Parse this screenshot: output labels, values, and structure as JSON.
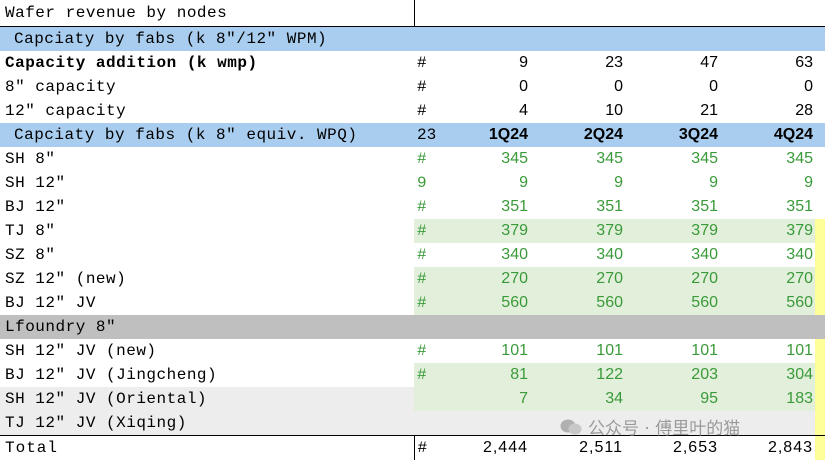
{
  "title": "Wafer revenue by nodes",
  "sections": [
    {
      "header": "Capciaty by fabs (k 8″/12″ WPM)",
      "rows": [
        {
          "label": "Capacity addition (k wmp)",
          "marker": "#",
          "values": [
            9,
            23,
            47,
            63
          ]
        },
        {
          "label": "8″ capacity",
          "marker": "#",
          "values": [
            0,
            0,
            0,
            0
          ]
        },
        {
          "label": "12″ capacity",
          "marker": "#",
          "values": [
            4,
            10,
            21,
            28
          ]
        }
      ]
    },
    {
      "header": "Capciaty by fabs (k 8″ equiv. WPQ)",
      "marker": "23",
      "columns": [
        "1Q24",
        "2Q24",
        "3Q24",
        "4Q24"
      ],
      "rows": [
        {
          "label": "SH 8″",
          "marker": "#",
          "values": [
            345,
            345,
            345,
            345
          ]
        },
        {
          "label": "SH 12″",
          "marker": "9",
          "values": [
            9,
            9,
            9,
            9
          ]
        },
        {
          "label": "BJ 12″",
          "marker": "#",
          "values": [
            351,
            351,
            351,
            351
          ]
        },
        {
          "label": "TJ 8″",
          "marker": "#",
          "values": [
            379,
            379,
            379,
            379
          ]
        },
        {
          "label": "SZ 8″",
          "marker": "#",
          "values": [
            340,
            340,
            340,
            340
          ]
        },
        {
          "label": "SZ 12″ (new)",
          "marker": "#",
          "values": [
            270,
            270,
            270,
            270
          ]
        },
        {
          "label": "BJ 12″ JV",
          "marker": "#",
          "values": [
            560,
            560,
            560,
            560
          ]
        },
        {
          "label": "Lfoundry 8″"
        },
        {
          "label": "SH 12″ JV (new)",
          "marker": "#",
          "values": [
            101,
            101,
            101,
            101
          ]
        },
        {
          "label": "BJ 12″ JV (Jingcheng)",
          "marker": "#",
          "values": [
            81,
            122,
            203,
            304
          ]
        },
        {
          "label": "SH 12″ JV (Oriental)",
          "values": [
            7,
            34,
            95,
            183
          ]
        },
        {
          "label": "TJ 12″ JV (Xiqing)"
        }
      ]
    }
  ],
  "total": {
    "label": "Total",
    "marker": "#",
    "values": [
      "2,444",
      "2,511",
      "2,653",
      "2,843"
    ]
  },
  "watermark": "公众号 · 傅里叶的猫"
}
